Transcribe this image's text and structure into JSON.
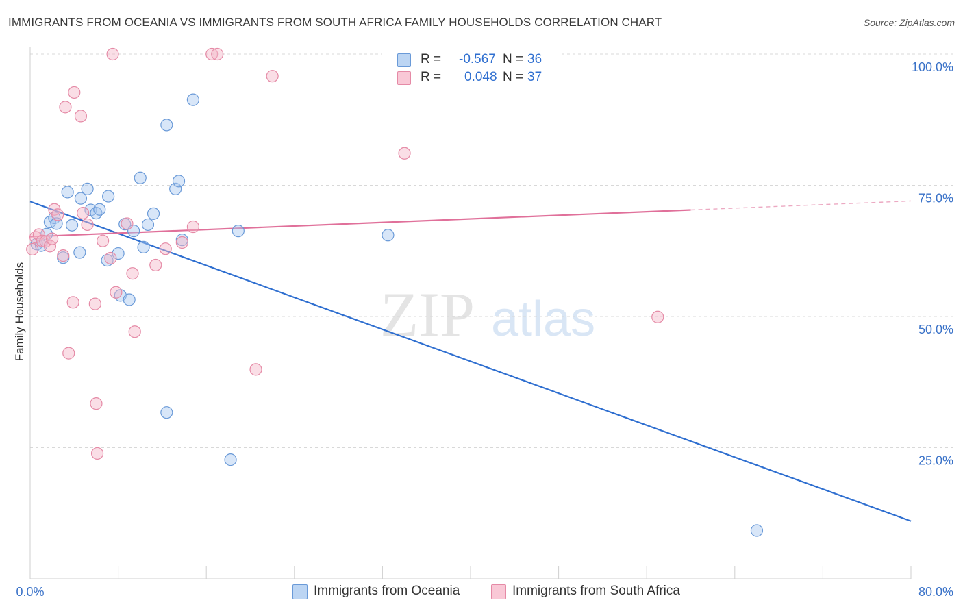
{
  "header": {
    "title": "IMMIGRANTS FROM OCEANIA VS IMMIGRANTS FROM SOUTH AFRICA FAMILY HOUSEHOLDS CORRELATION CHART",
    "source": "Source: ZipAtlas.com"
  },
  "legend": {
    "r_label": "R =",
    "n_label": "N =",
    "oceania_r": "-0.567",
    "oceania_n": "36",
    "south_africa_r": "0.048",
    "south_africa_n": "37"
  },
  "colors": {
    "oceania_fill": "#a8c8f0",
    "oceania_stroke": "#6a9ad8",
    "oceania_line": "#2f6fd0",
    "south_africa_fill": "#f5b5c8",
    "south_africa_stroke": "#e58aa6",
    "south_africa_line": "#e0709a",
    "axis_text": "#3a72c8",
    "grid": "#d8d8d8"
  },
  "chart_data": {
    "type": "scatter",
    "title": "IMMIGRANTS FROM OCEANIA VS IMMIGRANTS FROM SOUTH AFRICA FAMILY HOUSEHOLDS CORRELATION CHART",
    "xlabel": "",
    "ylabel": "Family Households",
    "xlim": [
      0,
      80
    ],
    "ylim": [
      0,
      105
    ],
    "x_tick_labels": {
      "left": "0.0%",
      "right": "80.0%"
    },
    "y_ticks": [
      {
        "value": 25,
        "label": "25.0%"
      },
      {
        "value": 50,
        "label": "50.0%"
      },
      {
        "value": 75,
        "label": "75.0%"
      },
      {
        "value": 100,
        "label": "100.0%"
      }
    ],
    "watermark": {
      "zip": "ZIP",
      "atlas": "atlas"
    },
    "series": [
      {
        "name": "Immigrants from Oceania",
        "r": -0.567,
        "n": 36,
        "trend": {
          "x": [
            0,
            80
          ],
          "y": [
            71.9,
            11.0
          ],
          "solid_to": 80
        },
        "points": [
          [
            0.6,
            63.8
          ],
          [
            1.0,
            63.5
          ],
          [
            1.5,
            65.7
          ],
          [
            1.8,
            68.0
          ],
          [
            2.2,
            68.8
          ],
          [
            2.4,
            67.7
          ],
          [
            3.0,
            61.2
          ],
          [
            3.4,
            73.7
          ],
          [
            3.8,
            67.4
          ],
          [
            4.5,
            62.2
          ],
          [
            4.6,
            72.5
          ],
          [
            5.2,
            74.3
          ],
          [
            5.5,
            70.3
          ],
          [
            6.0,
            69.7
          ],
          [
            6.3,
            70.4
          ],
          [
            7.1,
            72.9
          ],
          [
            7.0,
            60.7
          ],
          [
            8.0,
            62.0
          ],
          [
            8.2,
            54.0
          ],
          [
            8.6,
            67.6
          ],
          [
            9.0,
            53.2
          ],
          [
            9.4,
            66.3
          ],
          [
            10.0,
            76.4
          ],
          [
            10.3,
            63.2
          ],
          [
            10.7,
            67.5
          ],
          [
            11.2,
            69.6
          ],
          [
            12.4,
            86.5
          ],
          [
            12.4,
            31.7
          ],
          [
            13.2,
            74.3
          ],
          [
            13.5,
            75.8
          ],
          [
            13.8,
            64.6
          ],
          [
            14.8,
            91.3
          ],
          [
            18.2,
            22.7
          ],
          [
            18.9,
            66.3
          ],
          [
            32.5,
            65.5
          ],
          [
            66.0,
            9.2
          ]
        ]
      },
      {
        "name": "Immigrants from South Africa",
        "r": 0.048,
        "n": 37,
        "trend": {
          "x": [
            0,
            80
          ],
          "y": [
            65.2,
            72.0
          ],
          "solid_to": 60
        },
        "points": [
          [
            0.2,
            62.8
          ],
          [
            0.5,
            65.1
          ],
          [
            0.8,
            65.6
          ],
          [
            1.1,
            64.4
          ],
          [
            1.4,
            64.3
          ],
          [
            1.8,
            63.4
          ],
          [
            2.0,
            64.8
          ],
          [
            2.2,
            70.4
          ],
          [
            2.5,
            69.4
          ],
          [
            3.0,
            61.6
          ],
          [
            3.2,
            89.9
          ],
          [
            3.5,
            43.0
          ],
          [
            3.9,
            52.7
          ],
          [
            4.0,
            92.7
          ],
          [
            4.6,
            88.2
          ],
          [
            4.8,
            69.7
          ],
          [
            5.2,
            67.5
          ],
          [
            5.9,
            52.4
          ],
          [
            6.0,
            33.4
          ],
          [
            6.1,
            23.9
          ],
          [
            6.6,
            64.4
          ],
          [
            7.3,
            61.1
          ],
          [
            7.5,
            100.0
          ],
          [
            7.8,
            54.6
          ],
          [
            8.8,
            67.7
          ],
          [
            9.3,
            58.2
          ],
          [
            9.5,
            47.1
          ],
          [
            11.4,
            59.8
          ],
          [
            12.3,
            62.9
          ],
          [
            13.8,
            64.1
          ],
          [
            14.8,
            67.1
          ],
          [
            16.5,
            100.0
          ],
          [
            17.0,
            100.0
          ],
          [
            20.5,
            39.9
          ],
          [
            22.0,
            95.8
          ],
          [
            34.0,
            81.1
          ],
          [
            57.0,
            49.9
          ]
        ]
      }
    ]
  }
}
